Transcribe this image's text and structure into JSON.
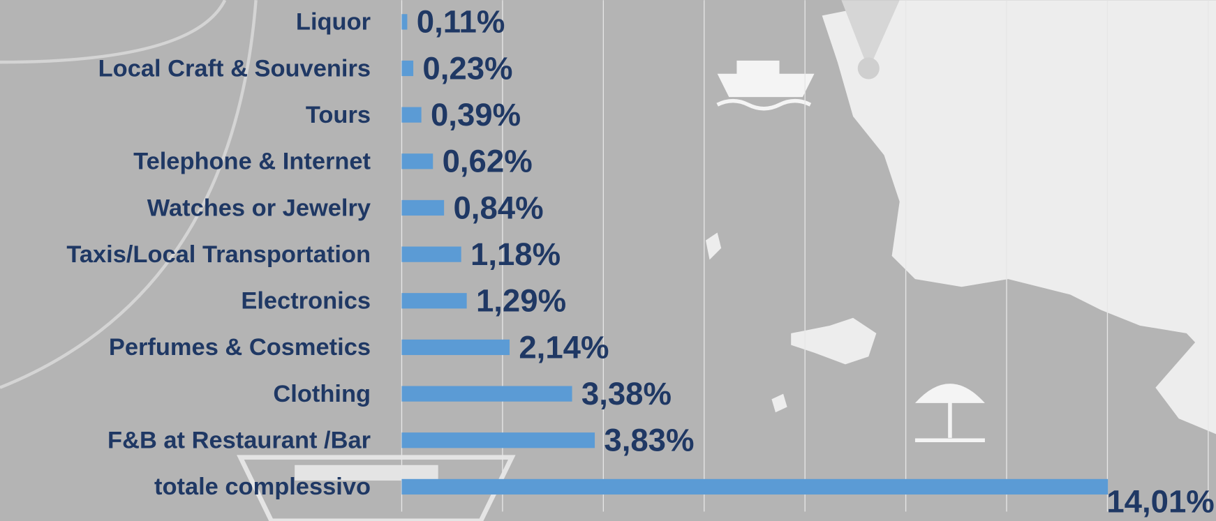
{
  "chart_data": {
    "type": "bar",
    "orientation": "horizontal",
    "categories": [
      "Liquor",
      "Local Craft & Souvenirs",
      "Tours",
      "Telephone & Internet",
      "Watches or Jewelry",
      "Taxis/Local Transportation",
      "Electronics",
      "Perfumes & Cosmetics",
      "Clothing",
      "F&B at Restaurant /Bar",
      "totale complessivo"
    ],
    "values": [
      0.11,
      0.23,
      0.39,
      0.62,
      0.84,
      1.18,
      1.29,
      2.14,
      3.38,
      3.83,
      14.01
    ],
    "value_labels": [
      "0,11%",
      "0,23%",
      "0,39%",
      "0,62%",
      "0,84%",
      "1,18%",
      "1,29%",
      "2,14%",
      "3,38%",
      "3,83%",
      "14,01%"
    ],
    "color": "#5b9bd5",
    "xlim": [
      0,
      16
    ],
    "xticks": [
      0,
      2,
      4,
      6,
      8,
      10,
      12,
      14,
      16
    ],
    "grid": true
  }
}
